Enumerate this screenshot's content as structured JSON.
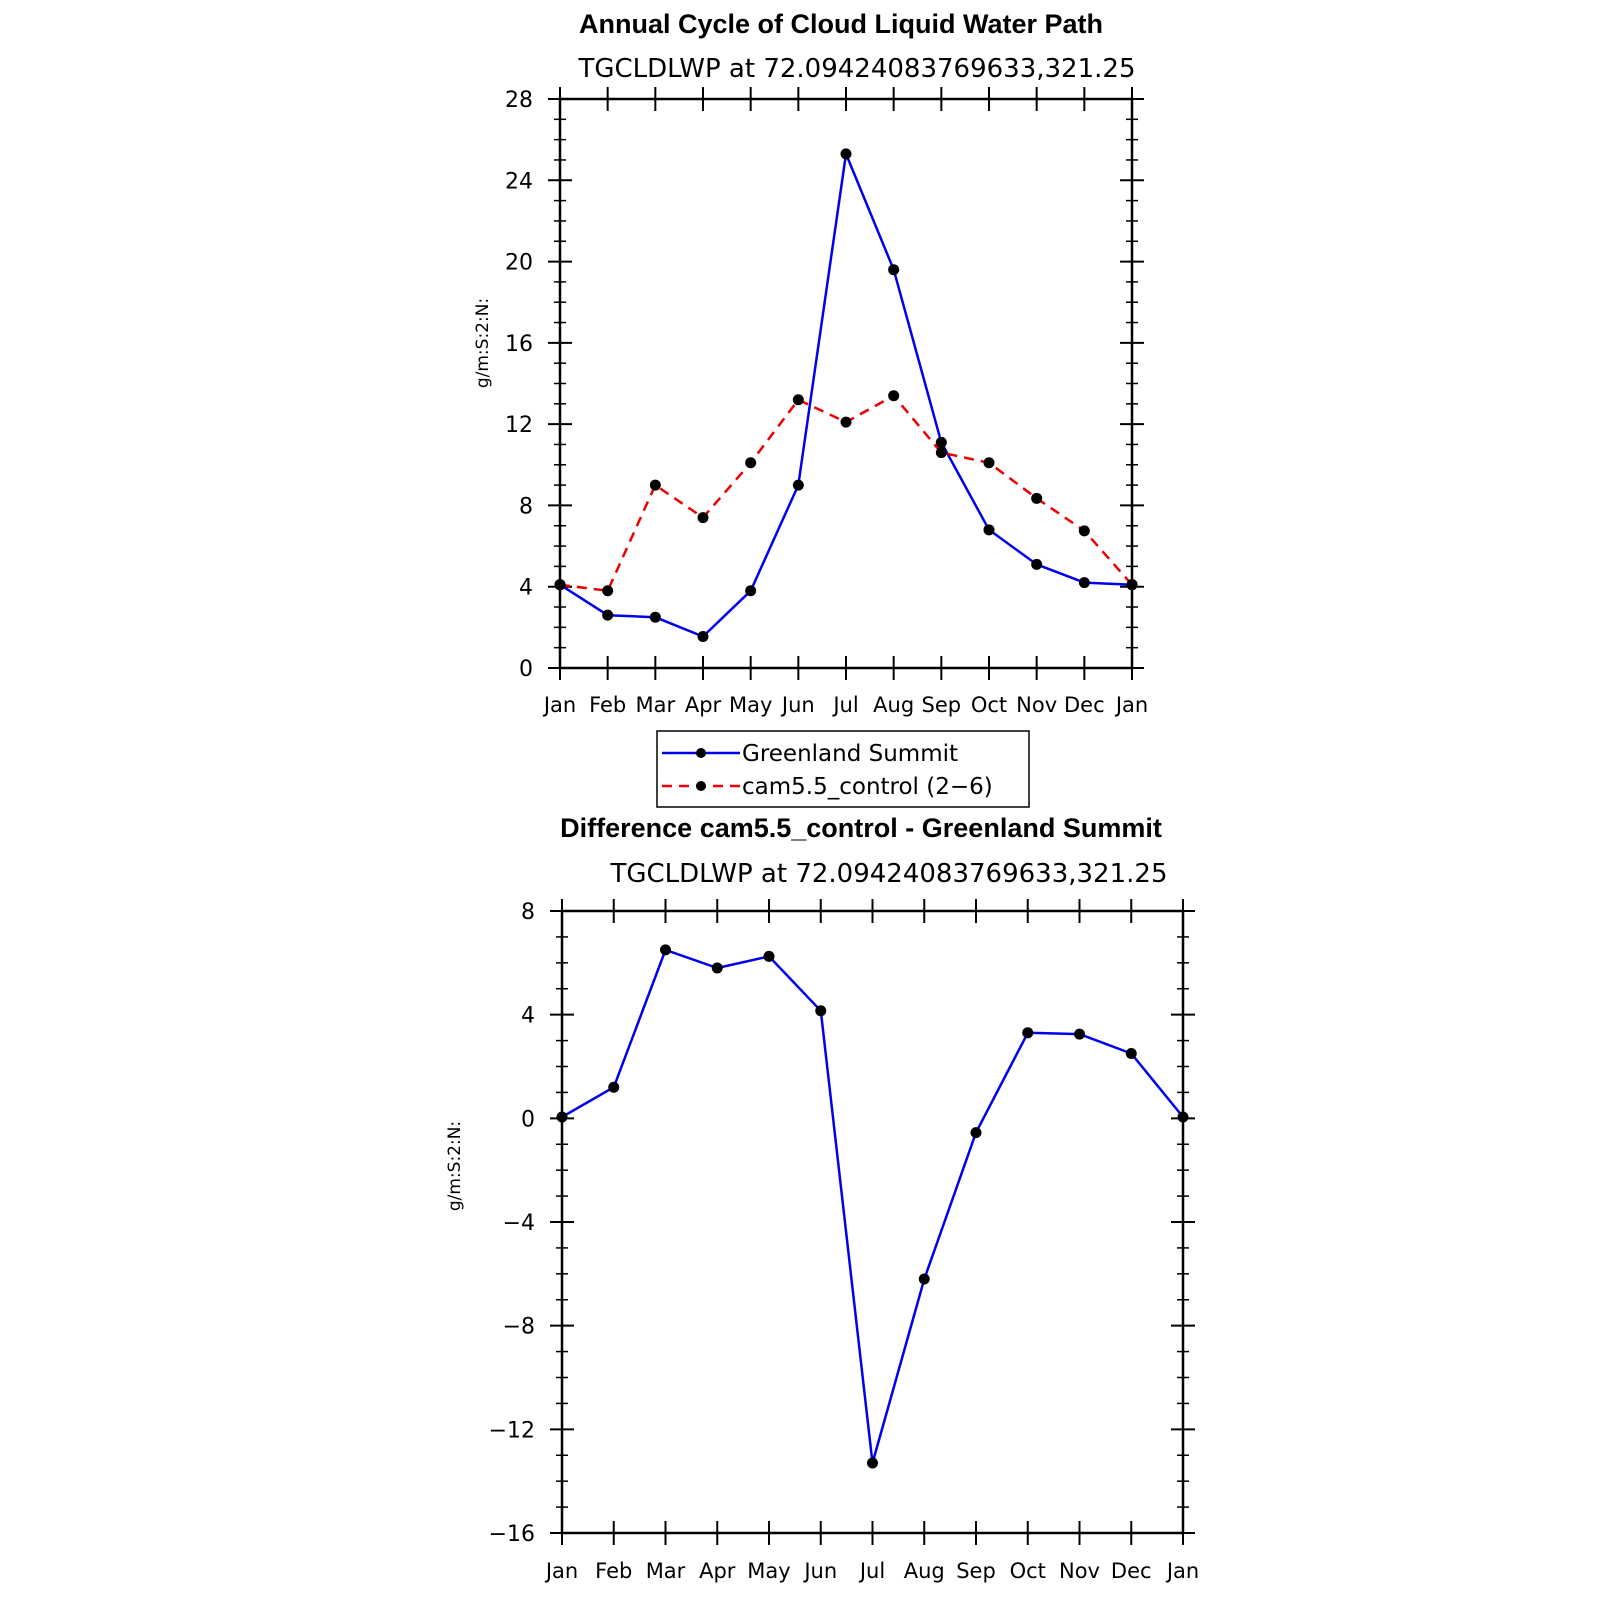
{
  "chart_data": [
    {
      "type": "line",
      "title": "Annual Cycle of Cloud Liquid Water Path",
      "subtitle": "TGCLDLWP  at  72.09424083769633,321.25",
      "ylabel": "g/m:S:2:N:",
      "xlabel": "",
      "categories": [
        "Jan",
        "Feb",
        "Mar",
        "Apr",
        "May",
        "Jun",
        "Jul",
        "Aug",
        "Sep",
        "Oct",
        "Nov",
        "Dec",
        "Jan"
      ],
      "ylim": [
        0,
        28
      ],
      "yticks": [
        "0",
        "4",
        "8",
        "12",
        "16",
        "20",
        "24",
        "28"
      ],
      "series": [
        {
          "name": "Greenland Summit",
          "color": "#0000ee",
          "dash": "solid",
          "values": [
            4.1,
            2.6,
            2.5,
            1.55,
            3.8,
            9.0,
            25.3,
            19.6,
            11.1,
            6.8,
            5.1,
            4.2,
            4.1
          ]
        },
        {
          "name": "cam5.5_control (2−6)",
          "color": "#ee0000",
          "dash": "dashed",
          "values": [
            4.1,
            3.8,
            9.0,
            7.4,
            10.1,
            13.2,
            12.1,
            13.4,
            10.6,
            10.1,
            8.35,
            6.75,
            4.1
          ]
        }
      ],
      "legend": "bottom-center"
    },
    {
      "type": "line",
      "title": "Difference cam5.5_control - Greenland Summit",
      "subtitle": "TGCLDLWP  at  72.09424083769633,321.25",
      "ylabel": "g/m:S:2:N:",
      "xlabel": "",
      "categories": [
        "Jan",
        "Feb",
        "Mar",
        "Apr",
        "May",
        "Jun",
        "Jul",
        "Aug",
        "Sep",
        "Oct",
        "Nov",
        "Dec",
        "Jan"
      ],
      "ylim": [
        -16,
        8
      ],
      "yticks": [
        "−16",
        "−12",
        "−8",
        "−4",
        "0",
        "4",
        "8"
      ],
      "series": [
        {
          "name": "",
          "color": "#0000ee",
          "dash": "solid",
          "values": [
            0.05,
            1.2,
            6.5,
            5.8,
            6.25,
            4.15,
            -13.3,
            -6.2,
            -0.55,
            3.3,
            3.25,
            2.5,
            0.05
          ]
        }
      ]
    }
  ]
}
